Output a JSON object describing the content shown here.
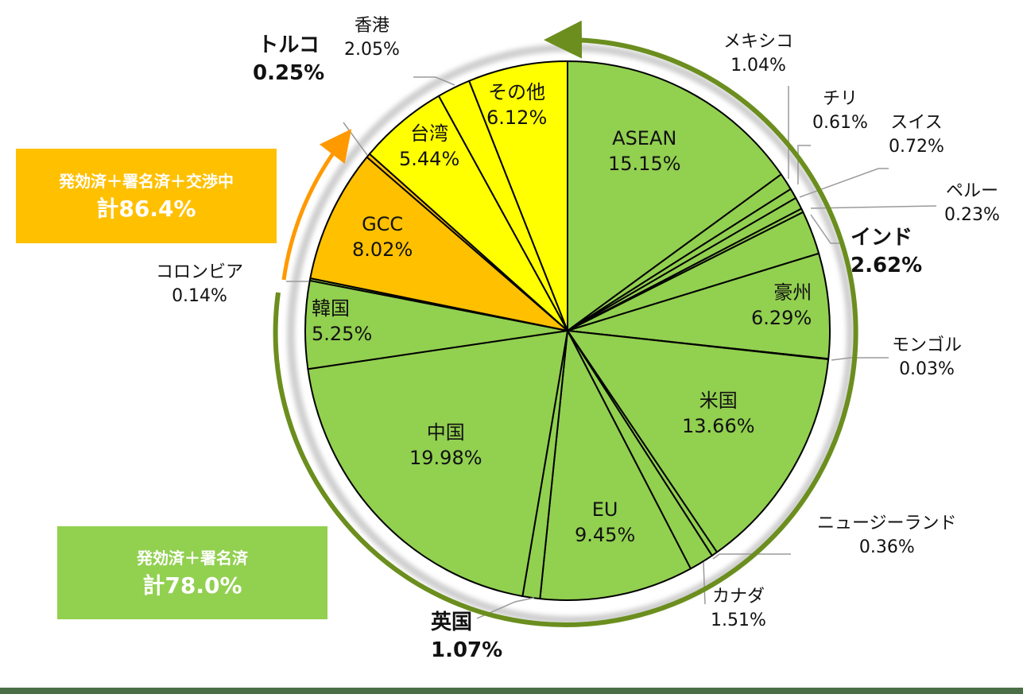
{
  "chart_data": {
    "type": "pie",
    "title": "",
    "start_angle_deg": 0,
    "direction": "clockwise",
    "slices": [
      {
        "label": "ASEAN",
        "value": 15.15,
        "display": "15.15%",
        "color": "#92d050",
        "group": "green"
      },
      {
        "label": "メキシコ",
        "value": 1.04,
        "display": "1.04%",
        "color": "#92d050",
        "group": "green"
      },
      {
        "label": "チリ",
        "value": 0.61,
        "display": "0.61%",
        "color": "#92d050",
        "group": "green"
      },
      {
        "label": "スイス",
        "value": 0.72,
        "display": "0.72%",
        "color": "#92d050",
        "group": "green"
      },
      {
        "label": "ペルー",
        "value": 0.23,
        "display": "0.23%",
        "color": "#92d050",
        "group": "green"
      },
      {
        "label": "インド",
        "value": 2.62,
        "display": "2.62%",
        "color": "#92d050",
        "group": "green"
      },
      {
        "label": "豪州",
        "value": 6.29,
        "display": "6.29%",
        "color": "#92d050",
        "group": "green"
      },
      {
        "label": "モンゴル",
        "value": 0.03,
        "display": "0.03%",
        "color": "#92d050",
        "group": "green"
      },
      {
        "label": "米国",
        "value": 13.66,
        "display": "13.66%",
        "color": "#92d050",
        "group": "green"
      },
      {
        "label": "ニュージーランド",
        "value": 0.36,
        "display": "0.36%",
        "color": "#92d050",
        "group": "green"
      },
      {
        "label": "カナダ",
        "value": 1.51,
        "display": "1.51%",
        "color": "#92d050",
        "group": "green"
      },
      {
        "label": "EU",
        "value": 9.45,
        "display": "9.45%",
        "color": "#92d050",
        "group": "green"
      },
      {
        "label": "英国",
        "value": 1.07,
        "display": "1.07%",
        "color": "#92d050",
        "group": "green"
      },
      {
        "label": "中国",
        "value": 19.98,
        "display": "19.98%",
        "color": "#92d050",
        "group": "green"
      },
      {
        "label": "韓国",
        "value": 5.25,
        "display": "5.25%",
        "color": "#92d050",
        "group": "green"
      },
      {
        "label": "コロンビア",
        "value": 0.14,
        "display": "0.14%",
        "color": "#92d050",
        "group": "green"
      },
      {
        "label": "GCC",
        "value": 8.02,
        "display": "8.02%",
        "color": "#ffc000",
        "group": "orange"
      },
      {
        "label": "トルコ",
        "value": 0.25,
        "display": "0.25%",
        "color": "#ffc000",
        "group": "orange"
      },
      {
        "label": "台湾",
        "value": 5.44,
        "display": "5.44%",
        "color": "#ffff00",
        "group": "yellow"
      },
      {
        "label": "香港",
        "value": 2.05,
        "display": "2.05%",
        "color": "#ffff00",
        "group": "yellow"
      },
      {
        "label": "その他",
        "value": 6.12,
        "display": "6.12%",
        "color": "#ffff00",
        "group": "yellow"
      }
    ],
    "annotations": [
      {
        "text": "発効済＋署名済＋交渉中",
        "total": "計86.4%",
        "color": "#ffc000"
      },
      {
        "text": "発効済＋署名済",
        "total": "計78.0%",
        "color": "#92d050"
      }
    ]
  },
  "labels": {
    "asean": {
      "name": "ASEAN",
      "value": "15.15%"
    },
    "mexico": {
      "name": "メキシコ",
      "value": "1.04%"
    },
    "chile": {
      "name": "チリ",
      "value": "0.61%"
    },
    "swiss": {
      "name": "スイス",
      "value": "0.72%"
    },
    "peru": {
      "name": "ペルー",
      "value": "0.23%"
    },
    "india": {
      "name": "インド",
      "value": "2.62%"
    },
    "australia": {
      "name": "豪州",
      "value": "6.29%"
    },
    "mongolia": {
      "name": "モンゴル",
      "value": "0.03%"
    },
    "usa": {
      "name": "米国",
      "value": "13.66%"
    },
    "nz": {
      "name": "ニュージーランド",
      "value": "0.36%"
    },
    "canada": {
      "name": "カナダ",
      "value": "1.51%"
    },
    "eu": {
      "name": "EU",
      "value": "9.45%"
    },
    "uk": {
      "name": "英国",
      "value": "1.07%"
    },
    "china": {
      "name": "中国",
      "value": "19.98%"
    },
    "korea": {
      "name": "韓国",
      "value": "5.25%"
    },
    "colombia": {
      "name": "コロンビア",
      "value": "0.14%"
    },
    "gcc": {
      "name": "GCC",
      "value": "8.02%"
    },
    "turkey": {
      "name": "トルコ",
      "value": "0.25%"
    },
    "taiwan": {
      "name": "台湾",
      "value": "5.44%"
    },
    "hongkong": {
      "name": "香港",
      "value": "2.05%"
    },
    "other": {
      "name": "その他",
      "value": "6.12%"
    }
  },
  "boxes": {
    "orange": {
      "line1": "発効済＋署名済＋交渉中",
      "line2": "計86.4%",
      "color": "#ffc000"
    },
    "green": {
      "line1": "発効済＋署名済",
      "line2": "計78.0%",
      "color": "#92d050"
    }
  },
  "colors": {
    "green_slice": "#92d050",
    "orange_slice": "#ffc000",
    "yellow_slice": "#ffff00",
    "green_arrow": "#6b8e1e",
    "orange_arrow": "#ff9900",
    "footer_bar": "#4a6f47"
  }
}
